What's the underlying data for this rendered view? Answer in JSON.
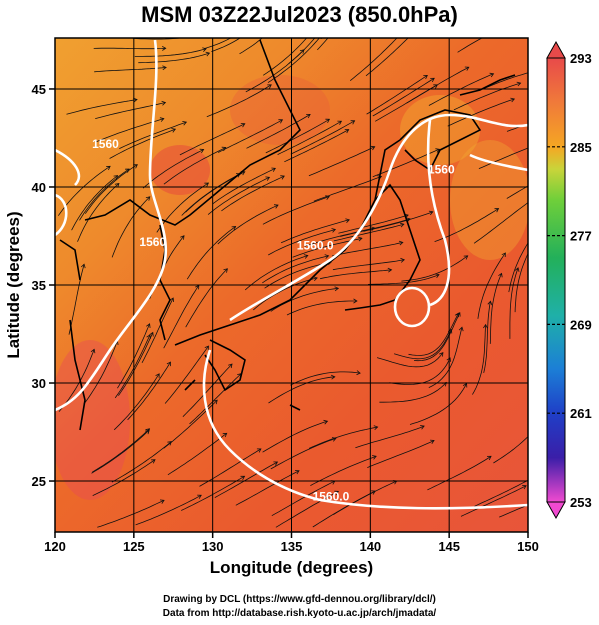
{
  "title": "MSM 03Z22Jul2023 (850.0hPa)",
  "xlabel": "Longitude (degrees)",
  "ylabel": "Latitude  (degrees)",
  "credits": [
    "Drawing by DCL (https://www.gfd-dennou.org/library/dcl/)",
    "Data from http://database.rish.kyoto-u.ac.jp/arch/jmadata/"
  ],
  "map": {
    "lon_range": [
      120,
      150
    ],
    "lat_range": [
      22.4,
      47.6
    ],
    "lon_ticks": [
      120,
      125,
      130,
      135,
      140,
      145,
      150
    ],
    "lon_tick_labels": [
      "120",
      "125",
      "130",
      "135",
      "140",
      "145",
      "150"
    ],
    "lat_ticks": [
      25,
      30,
      35,
      40,
      45
    ],
    "lat_tick_labels": [
      "25",
      "30",
      "35",
      "40",
      "45"
    ],
    "field": "temperature (shaded) with streamlines and geopotential height contours",
    "contour_color": "#ffffff",
    "contour_labels": [
      {
        "text": "1560.0",
        "lon": 137.5,
        "lat": 24.0
      },
      {
        "text": "1560.0",
        "lon": 136.5,
        "lat": 36.8
      },
      {
        "text": "1560",
        "lon": 126.2,
        "lat": 37.0
      },
      {
        "text": "1560",
        "lon": 123.2,
        "lat": 42.0
      },
      {
        "text": "1560",
        "lon": 144.5,
        "lat": 40.7
      }
    ]
  },
  "colorbar": {
    "labels": [
      "293",
      "285",
      "277",
      "269",
      "261",
      "253"
    ],
    "max": 293,
    "min": 253,
    "colors": [
      "#e84a4a",
      "#f07a3a",
      "#f5a623",
      "#f4c93a",
      "#c9d43a",
      "#6fcf3a",
      "#23b05a",
      "#1fb0a8",
      "#1c7fd6",
      "#1f3fc7",
      "#3a1ea8",
      "#8a1aa8",
      "#c21ab5",
      "#f04ad0"
    ]
  }
}
